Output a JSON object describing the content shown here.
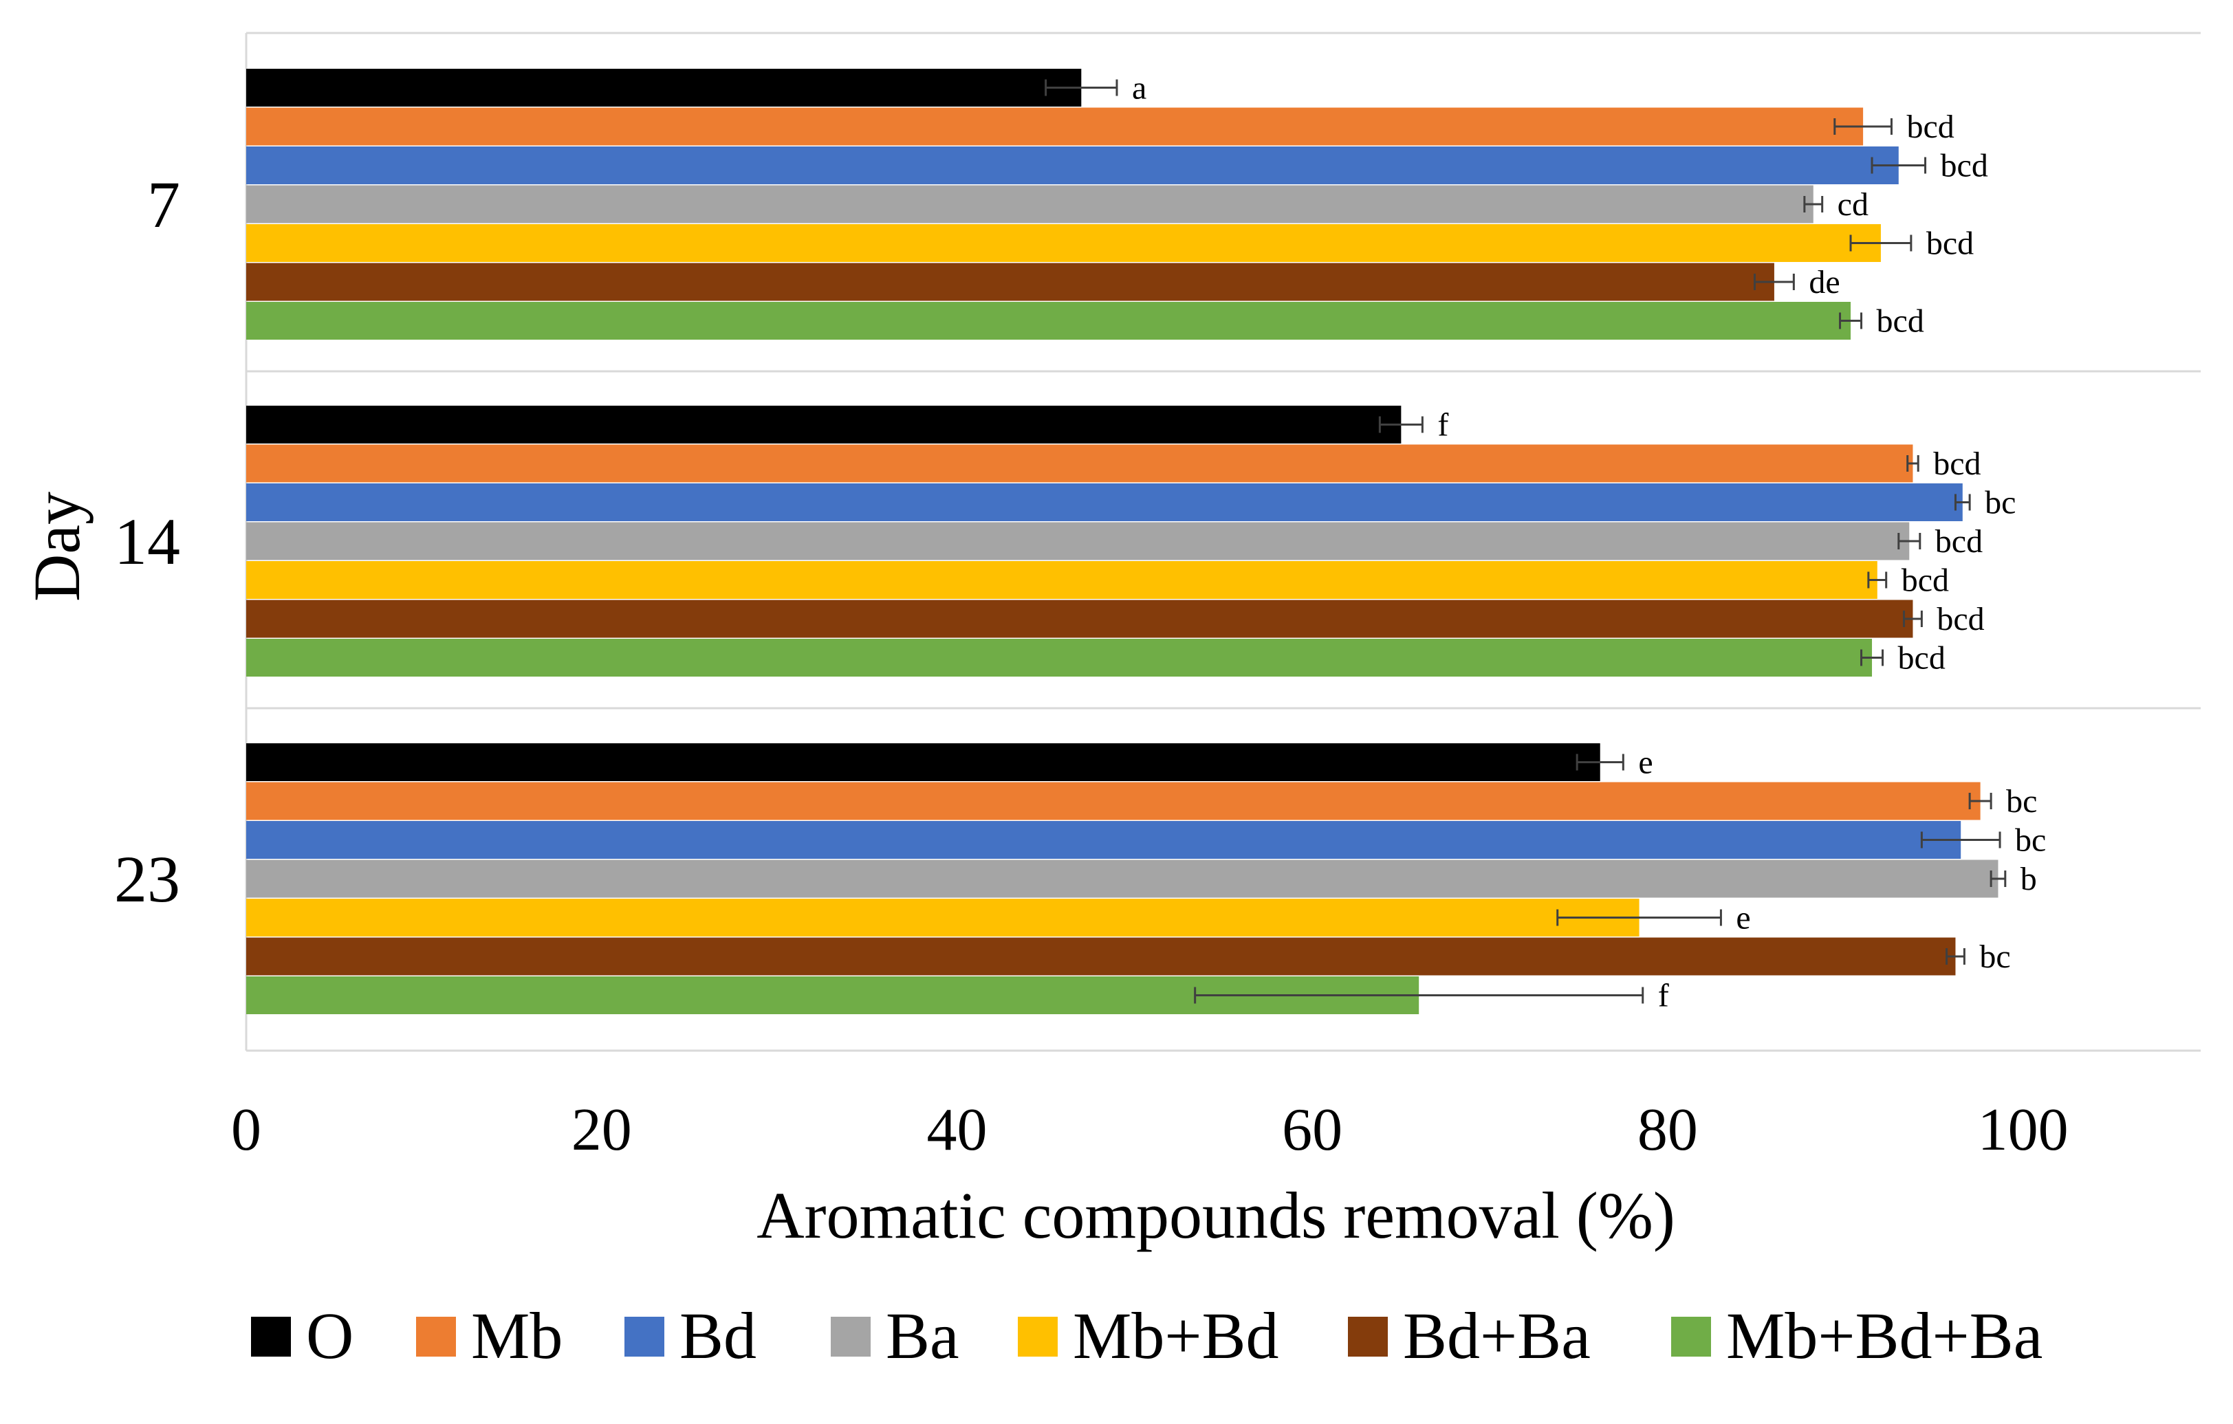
{
  "chart_data": {
    "type": "bar",
    "orientation": "horizontal",
    "title": "",
    "xlabel": "Aromatic compounds removal (%)",
    "ylabel": "Day",
    "xlim": [
      0,
      110
    ],
    "xticks": [
      0,
      20,
      40,
      60,
      80,
      100
    ],
    "xtick_labels": [
      "0",
      "20",
      "40",
      "60",
      "80",
      "100"
    ],
    "categories": [
      "7",
      "14",
      "23"
    ],
    "grid": "horizontal separators between day groups",
    "legend_position": "bottom",
    "series": [
      {
        "name": "O",
        "color": "#000000",
        "values": [
          47.0,
          65.0,
          76.2
        ],
        "errors": [
          2.0,
          1.2,
          1.3
        ],
        "labels": [
          "a",
          "f",
          "e"
        ]
      },
      {
        "name": "Mb",
        "color": "#ED7D31",
        "values": [
          91.0,
          93.8,
          97.6
        ],
        "errors": [
          1.6,
          0.3,
          0.6
        ],
        "labels": [
          "bcd",
          "bcd",
          "bc"
        ]
      },
      {
        "name": "Bd",
        "color": "#4472C4",
        "values": [
          93.0,
          96.6,
          96.5
        ],
        "errors": [
          1.5,
          0.4,
          2.2
        ],
        "labels": [
          "bcd",
          "bc",
          "bc"
        ]
      },
      {
        "name": "Ba",
        "color": "#A5A5A5",
        "values": [
          88.2,
          93.6,
          98.6
        ],
        "errors": [
          0.5,
          0.6,
          0.4
        ],
        "labels": [
          "cd",
          "bcd",
          "b"
        ]
      },
      {
        "name": "Mb+Bd",
        "color": "#FFC000",
        "values": [
          92.0,
          91.8,
          78.4
        ],
        "errors": [
          1.7,
          0.5,
          4.6
        ],
        "labels": [
          "bcd",
          "bcd",
          "e"
        ]
      },
      {
        "name": "Bd+Ba",
        "color": "#843C0C",
        "values": [
          86.0,
          93.8,
          96.2
        ],
        "errors": [
          1.1,
          0.5,
          0.5
        ],
        "labels": [
          "de",
          "bcd",
          "bc"
        ]
      },
      {
        "name": "Mb+Bd+Ba",
        "color": "#70AD47",
        "values": [
          90.3,
          91.5,
          66.0
        ],
        "errors": [
          0.6,
          0.6,
          12.6
        ],
        "labels": [
          "bcd",
          "bcd",
          "f"
        ]
      }
    ]
  }
}
